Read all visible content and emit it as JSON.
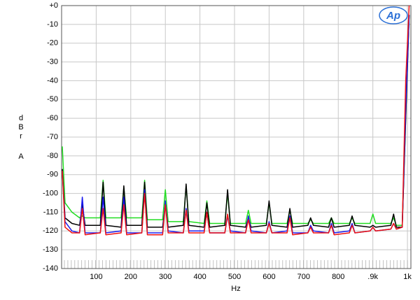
{
  "chart_data": {
    "type": "line",
    "logo": "Ap",
    "x_label": "Hz",
    "y_label": [
      "dBr",
      "A"
    ],
    "xlim": [
      0,
      1010
    ],
    "ylim": [
      -140,
      0
    ],
    "xticks": [
      100,
      200,
      300,
      400,
      500,
      600,
      700,
      800,
      {
        "value": 900,
        "label": ".9k"
      },
      {
        "value": 1000,
        "label": "1k"
      }
    ],
    "yticks": [
      {
        "value": 0,
        "label": "+0"
      },
      -10,
      -20,
      -30,
      -40,
      -50,
      -60,
      -70,
      -80,
      -90,
      -100,
      -110,
      -120,
      -130,
      -140
    ],
    "grid": true,
    "x": [
      2,
      10,
      30,
      52,
      60,
      68,
      112,
      120,
      128,
      172,
      180,
      188,
      232,
      240,
      248,
      292,
      300,
      308,
      352,
      360,
      368,
      412,
      420,
      428,
      472,
      480,
      488,
      532,
      540,
      548,
      592,
      600,
      608,
      652,
      660,
      668,
      712,
      720,
      728,
      772,
      780,
      788,
      832,
      840,
      848,
      892,
      900,
      908,
      952,
      960,
      968,
      985,
      995,
      1005
    ],
    "series": [
      {
        "color": "#22dd22",
        "values": [
          -75,
          -105,
          -110,
          -113,
          -112,
          -113,
          -113,
          -93,
          -113,
          -113,
          -97,
          -113,
          -113,
          -93,
          -114,
          -114,
          -98,
          -115,
          -115,
          -96,
          -115,
          -116,
          -104,
          -116,
          -116,
          -100,
          -116,
          -116,
          -109,
          -116,
          -116,
          -105,
          -116,
          -116,
          -109,
          -116,
          -116,
          -114,
          -116,
          -116,
          -113,
          -116,
          -116,
          -113,
          -116,
          -116,
          -111,
          -116,
          -116,
          -113,
          -117,
          -117,
          -60,
          -5
        ]
      },
      {
        "color": "#000000",
        "values": [
          -87,
          -113,
          -116,
          -117,
          -106,
          -117,
          -117,
          -94,
          -117,
          -118,
          -96,
          -117,
          -117,
          -94,
          -118,
          -118,
          -106,
          -118,
          -117,
          -95,
          -117,
          -118,
          -105,
          -118,
          -117,
          -98,
          -117,
          -118,
          -113,
          -118,
          -117,
          -104,
          -117,
          -118,
          -108,
          -118,
          -117,
          -113,
          -117,
          -118,
          -113,
          -118,
          -117,
          -112,
          -117,
          -118,
          -117,
          -118,
          -117,
          -111,
          -118,
          -118,
          -60,
          -5
        ]
      },
      {
        "color": "#1a1aee",
        "values": [
          -88,
          -115,
          -120,
          -121,
          -102,
          -121,
          -121,
          -102,
          -121,
          -120,
          -102,
          -121,
          -121,
          -98,
          -121,
          -121,
          -104,
          -120,
          -121,
          -108,
          -120,
          -120,
          -110,
          -121,
          -121,
          -112,
          -120,
          -121,
          -112,
          -120,
          -121,
          -115,
          -121,
          -120,
          -112,
          -121,
          -121,
          -117,
          -120,
          -121,
          -116,
          -121,
          -120,
          -116,
          -121,
          -120,
          -118,
          -120,
          -119,
          -116,
          -119,
          -118,
          -55,
          -5
        ]
      },
      {
        "color": "#ee1111",
        "values": [
          -88,
          -118,
          -121,
          -121,
          -108,
          -122,
          -121,
          -108,
          -122,
          -121,
          -106,
          -122,
          -121,
          -100,
          -122,
          -122,
          -106,
          -121,
          -121,
          -109,
          -121,
          -121,
          -110,
          -121,
          -121,
          -111,
          -121,
          -121,
          -114,
          -121,
          -121,
          -116,
          -121,
          -121,
          -113,
          -122,
          -121,
          -118,
          -121,
          -121,
          -117,
          -122,
          -121,
          -117,
          -121,
          -120,
          -118,
          -120,
          -119,
          -116,
          -119,
          -118,
          -40,
          0
        ]
      }
    ]
  }
}
